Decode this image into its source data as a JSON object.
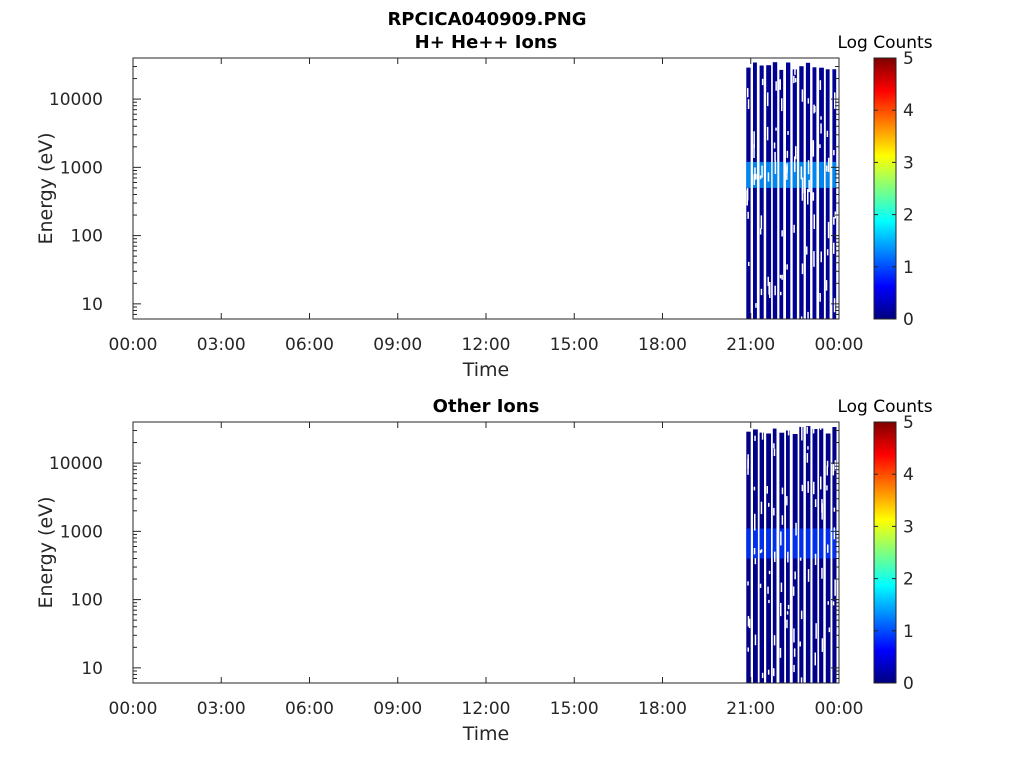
{
  "figure": {
    "title_line1": "RPCICA040909.PNG",
    "colormap": [
      "#00007f",
      "#0000ff",
      "#007fff",
      "#00ffff",
      "#7fff7f",
      "#ffff00",
      "#ff7f00",
      "#ff0000",
      "#7f0000"
    ]
  },
  "chart_data": [
    {
      "type": "heatmap",
      "title": "H+ He++ Ions",
      "xlabel": "Time",
      "ylabel": "Energy (eV)",
      "x_ticks": [
        "00:00",
        "03:00",
        "06:00",
        "09:00",
        "12:00",
        "15:00",
        "18:00",
        "21:00",
        "00:00"
      ],
      "xlim_hours": [
        0,
        24
      ],
      "y_scale": "log",
      "y_ticks": [
        10,
        100,
        1000,
        10000
      ],
      "y_tick_labels": [
        "10",
        "100",
        "1000",
        "10000"
      ],
      "ylim": [
        6,
        40000
      ],
      "colorbar": {
        "title": "Log Counts",
        "range": [
          0,
          5
        ],
        "ticks": [
          "0",
          "1",
          "2",
          "3",
          "4",
          "5"
        ]
      },
      "data_start_hour": 20.85,
      "data_end_hour": 24.0,
      "sweep_count": 14,
      "band_energy_ev": [
        500,
        1200
      ],
      "band_log_counts": 1.4,
      "background_log_counts": 0.1
    },
    {
      "type": "heatmap",
      "title": "Other Ions",
      "xlabel": "Time",
      "ylabel": "Energy (eV)",
      "x_ticks": [
        "00:00",
        "03:00",
        "06:00",
        "09:00",
        "12:00",
        "15:00",
        "18:00",
        "21:00",
        "00:00"
      ],
      "xlim_hours": [
        0,
        24
      ],
      "y_scale": "log",
      "y_ticks": [
        10,
        100,
        1000,
        10000
      ],
      "y_tick_labels": [
        "10",
        "100",
        "1000",
        "10000"
      ],
      "ylim": [
        6,
        40000
      ],
      "colorbar": {
        "title": "Log Counts",
        "range": [
          0,
          5
        ],
        "ticks": [
          "0",
          "1",
          "2",
          "3",
          "4",
          "5"
        ]
      },
      "data_start_hour": 20.85,
      "data_end_hour": 24.0,
      "sweep_count": 14,
      "band_energy_ev": [
        400,
        1100
      ],
      "band_log_counts": 0.9,
      "background_log_counts": 0.05
    }
  ]
}
